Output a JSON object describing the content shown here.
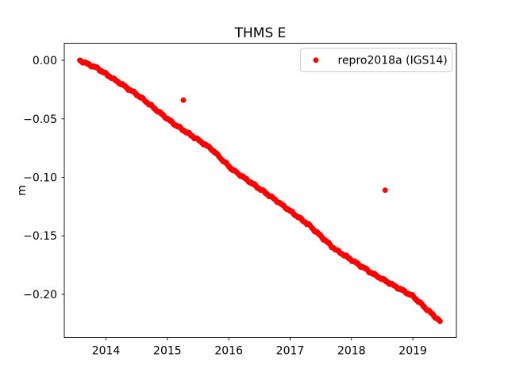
{
  "chart_data": {
    "type": "scatter",
    "title": "THMS E",
    "xlabel": "",
    "ylabel": "m",
    "grid": false,
    "xlim": [
      2013.32,
      2019.71
    ],
    "ylim": [
      -0.237,
      0.0146
    ],
    "x_ticks": [
      2014,
      2015,
      2016,
      2017,
      2018,
      2019
    ],
    "x_tick_labels": [
      "2014",
      "2015",
      "2016",
      "2017",
      "2018",
      "2019"
    ],
    "y_ticks": [
      0.0,
      -0.05,
      -0.1,
      -0.15,
      -0.2
    ],
    "y_tick_labels": [
      "0.00",
      "−0.05",
      "−0.10",
      "−0.15",
      "−0.20"
    ],
    "legend": {
      "position": "upper right",
      "entries": [
        {
          "label": "repro2018a (IGS14)",
          "color": "#ff0000",
          "marker": "dot"
        }
      ]
    },
    "series": [
      {
        "name": "repro2018a (IGS14)",
        "color": "#ff0000",
        "marker": "dot",
        "x_start": 2013.57,
        "x_end": 2019.45,
        "sample_step_years": 0.0035,
        "noise_amplitude_m": 0.0005,
        "trend_points": [
          [
            2013.57,
            0.0
          ],
          [
            2013.85,
            -0.0065
          ],
          [
            2014.5,
            -0.029
          ],
          [
            2015.1,
            -0.054
          ],
          [
            2015.7,
            -0.075
          ],
          [
            2016.05,
            -0.093
          ],
          [
            2016.7,
            -0.117
          ],
          [
            2017.3,
            -0.1405
          ],
          [
            2017.72,
            -0.161
          ],
          [
            2018.35,
            -0.1825
          ],
          [
            2019.0,
            -0.2016
          ],
          [
            2019.45,
            -0.2235
          ]
        ],
        "outliers": [
          [
            2015.26,
            -0.034
          ],
          [
            2018.55,
            -0.111
          ]
        ]
      }
    ]
  }
}
